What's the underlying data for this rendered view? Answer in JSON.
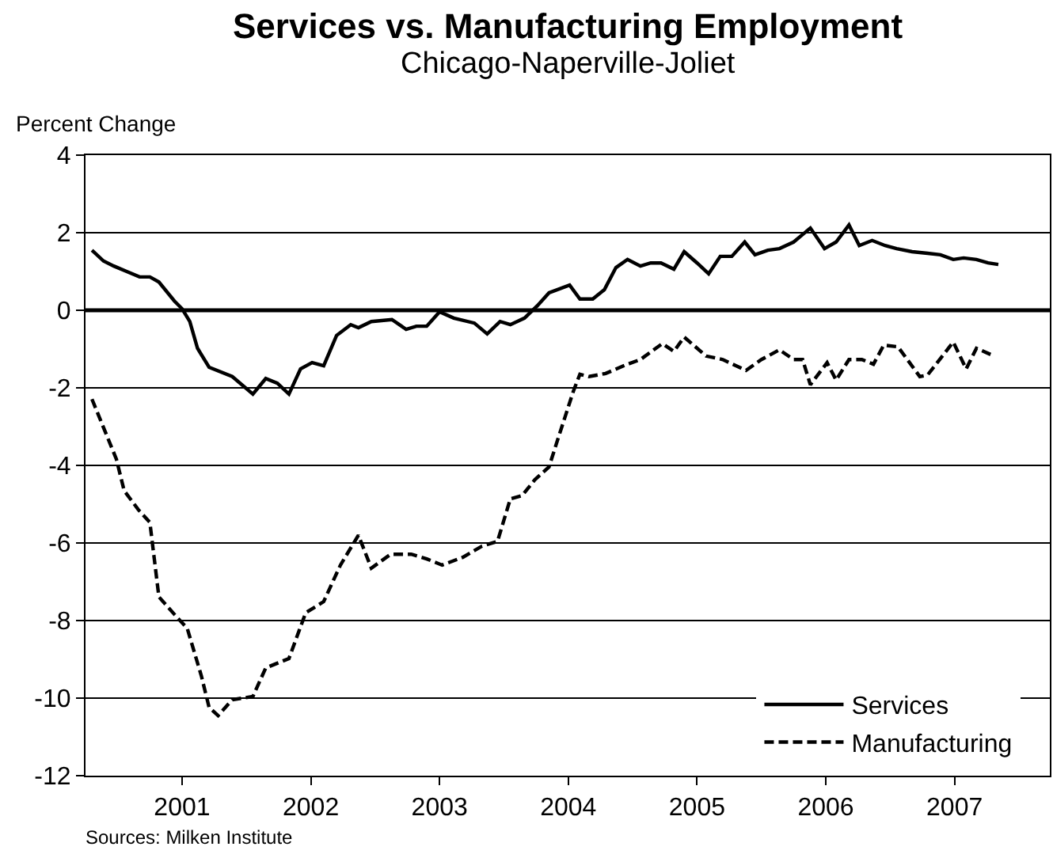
{
  "chart_data": {
    "type": "line",
    "title": "Services vs. Manufacturing Employment",
    "subtitle": "Chicago-Naperville-Joliet",
    "ylabel": "Percent Change",
    "annotations": [
      "Sources: Milken Institute"
    ],
    "series": [
      {
        "name": "Services",
        "color": "#000000",
        "line_style": "solid",
        "x": [
          2000.8,
          2000.89,
          2000.97,
          2001.07,
          2001.17,
          2001.25,
          2001.32,
          2001.44,
          2001.5,
          2001.56,
          2001.62,
          2001.71,
          2001.89,
          2002.05,
          2002.15,
          2002.24,
          2002.33,
          2002.42,
          2002.51,
          2002.6,
          2002.7,
          2002.81,
          2002.87,
          2002.97,
          2003.13,
          2003.24,
          2003.32,
          2003.4,
          2003.5,
          2003.61,
          2003.77,
          2003.87,
          2003.97,
          2004.05,
          2004.16,
          2004.26,
          2004.35,
          2004.51,
          2004.59,
          2004.69,
          2004.78,
          2004.87,
          2004.96,
          2005.06,
          2005.14,
          2005.22,
          2005.32,
          2005.4,
          2005.5,
          2005.59,
          2005.68,
          2005.77,
          2005.87,
          2005.95,
          2006.05,
          2006.14,
          2006.25,
          2006.38,
          2006.49,
          2006.58,
          2006.68,
          2006.76,
          2006.86,
          2006.96,
          2007.05,
          2007.17,
          2007.29,
          2007.39,
          2007.49,
          2007.57,
          2007.67,
          2007.76,
          2007.84
        ],
        "values": [
          1.55,
          1.27,
          1.14,
          1.0,
          0.86,
          0.86,
          0.73,
          0.24,
          0.04,
          -0.29,
          -0.98,
          -1.47,
          -1.71,
          -2.16,
          -1.76,
          -1.88,
          -2.16,
          -1.51,
          -1.35,
          -1.43,
          -0.65,
          -0.37,
          -0.45,
          -0.29,
          -0.24,
          -0.49,
          -0.41,
          -0.41,
          -0.04,
          -0.2,
          -0.33,
          -0.61,
          -0.29,
          -0.37,
          -0.2,
          0.12,
          0.45,
          0.65,
          0.29,
          0.29,
          0.53,
          1.1,
          1.31,
          1.14,
          1.22,
          1.22,
          1.06,
          1.51,
          1.22,
          0.94,
          1.39,
          1.39,
          1.76,
          1.43,
          1.55,
          1.59,
          1.76,
          2.12,
          1.59,
          1.76,
          2.2,
          1.67,
          1.8,
          1.67,
          1.59,
          1.51,
          1.47,
          1.43,
          1.31,
          1.35,
          1.31,
          1.22,
          1.18
        ]
      },
      {
        "name": "Manufacturing",
        "color": "#000000",
        "line_style": "dashed",
        "x": [
          2000.8,
          2000.99,
          2001.05,
          2001.16,
          2001.25,
          2001.32,
          2001.44,
          2001.54,
          2001.65,
          2001.71,
          2001.78,
          2001.89,
          2002.05,
          2002.15,
          2002.33,
          2002.46,
          2002.6,
          2002.73,
          2002.87,
          2002.97,
          2003.12,
          2003.28,
          2003.4,
          2003.52,
          2003.68,
          2003.83,
          2003.95,
          2004.05,
          2004.14,
          2004.24,
          2004.35,
          2004.42,
          2004.54,
          2004.59,
          2004.66,
          2004.79,
          2004.96,
          2005.06,
          2005.23,
          2005.32,
          2005.4,
          2005.57,
          2005.7,
          2005.88,
          2006.0,
          2006.14,
          2006.25,
          2006.32,
          2006.38,
          2006.51,
          2006.58,
          2006.68,
          2006.78,
          2006.87,
          2006.95,
          2007.06,
          2007.23,
          2007.29,
          2007.49,
          2007.59,
          2007.67,
          2007.78
        ],
        "values": [
          -2.29,
          -3.84,
          -4.65,
          -5.14,
          -5.47,
          -7.39,
          -7.84,
          -8.2,
          -9.43,
          -10.24,
          -10.45,
          -10.04,
          -9.96,
          -9.22,
          -8.98,
          -7.8,
          -7.51,
          -6.57,
          -5.8,
          -6.65,
          -6.29,
          -6.29,
          -6.41,
          -6.57,
          -6.37,
          -6.08,
          -5.96,
          -4.86,
          -4.78,
          -4.37,
          -4.04,
          -3.31,
          -2.08,
          -1.65,
          -1.71,
          -1.63,
          -1.39,
          -1.27,
          -0.86,
          -1.06,
          -0.69,
          -1.18,
          -1.27,
          -1.55,
          -1.27,
          -1.02,
          -1.27,
          -1.27,
          -1.92,
          -1.35,
          -1.8,
          -1.27,
          -1.27,
          -1.39,
          -0.9,
          -0.94,
          -1.71,
          -1.67,
          -0.82,
          -1.51,
          -0.98,
          -1.14
        ]
      }
    ],
    "xlim": [
      2000.75,
      2008.24
    ],
    "xticks": [
      {
        "value": 2001.5,
        "label": "2001"
      },
      {
        "value": 2002.5,
        "label": "2002"
      },
      {
        "value": 2003.5,
        "label": "2003"
      },
      {
        "value": 2004.5,
        "label": "2004"
      },
      {
        "value": 2005.5,
        "label": "2005"
      },
      {
        "value": 2006.5,
        "label": "2006"
      },
      {
        "value": 2007.5,
        "label": "2007"
      }
    ],
    "ylim": [
      -12,
      4
    ],
    "yticks": [
      -12,
      -10,
      -8,
      -6,
      -4,
      -2,
      0,
      2,
      4
    ],
    "ref_lines": [
      {
        "axis": "y",
        "value": 0,
        "label": null
      }
    ],
    "grid": "y",
    "legend": "bottom right",
    "marker": "none"
  }
}
